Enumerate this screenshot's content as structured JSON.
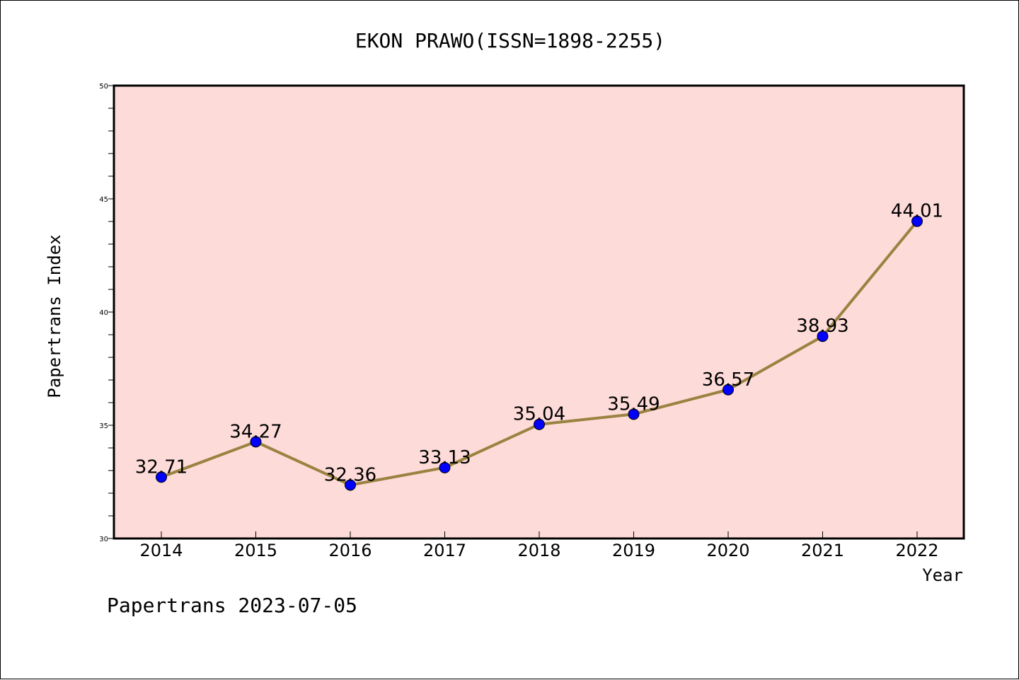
{
  "chart_data": {
    "type": "line",
    "title": "EKON PRAWO(ISSN=1898-2255)",
    "xlabel": "Year",
    "ylabel": "Papertrans Index",
    "categories": [
      "2014",
      "2015",
      "2016",
      "2017",
      "2018",
      "2019",
      "2020",
      "2021",
      "2022"
    ],
    "series": [
      {
        "values": [
          32.71,
          34.27,
          32.36,
          33.13,
          35.04,
          35.49,
          36.57,
          38.93,
          44.01
        ],
        "data_labels": [
          "32.71",
          "34.27",
          "32.36",
          "33.13",
          "35.04",
          "35.49",
          "36.57",
          "38.93",
          "44.01"
        ],
        "line_color": "#9a8240",
        "marker_color": "#0000ff"
      }
    ],
    "ylim": [
      30,
      50
    ],
    "yticks": [
      "30",
      "35",
      "40",
      "45",
      "50"
    ],
    "plot_background": "#fddbd8",
    "grid": false
  },
  "footer": "Papertrans 2023-07-05"
}
